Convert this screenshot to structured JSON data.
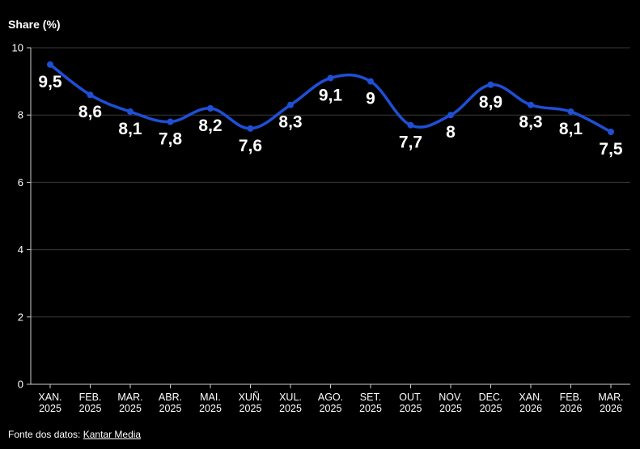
{
  "chart_data": {
    "type": "line",
    "ylabel": "Share (%)",
    "ylim": [
      0,
      10
    ],
    "yticks": [
      0,
      2,
      4,
      6,
      8,
      10
    ],
    "categories": [
      [
        "XAN.",
        "2025"
      ],
      [
        "FEB.",
        "2025"
      ],
      [
        "MAR.",
        "2025"
      ],
      [
        "ABR.",
        "2025"
      ],
      [
        "MAI.",
        "2025"
      ],
      [
        "XUÑ.",
        "2025"
      ],
      [
        "XUL.",
        "2025"
      ],
      [
        "AGO.",
        "2025"
      ],
      [
        "SET.",
        "2025"
      ],
      [
        "OUT.",
        "2025"
      ],
      [
        "NOV.",
        "2025"
      ],
      [
        "DEC.",
        "2025"
      ],
      [
        "XAN.",
        "2026"
      ],
      [
        "FEB.",
        "2026"
      ],
      [
        "MAR.",
        "2026"
      ]
    ],
    "values": [
      9.5,
      8.6,
      8.1,
      7.8,
      8.2,
      7.6,
      8.3,
      9.1,
      9,
      7.7,
      8,
      8.9,
      8.3,
      8.1,
      7.5
    ],
    "data_labels": [
      "9,5",
      "8,6",
      "8,1",
      "7,8",
      "8,2",
      "7,6",
      "8,3",
      "9,1",
      "9",
      "7,7",
      "8",
      "8,9",
      "8,3",
      "8,1",
      "7,5"
    ],
    "grid": true,
    "line_color": "#1f4fd6",
    "grid_color": "#3a3a3a"
  },
  "footer": {
    "prefix": "Fonte dos datos: ",
    "source": "Kantar Media"
  }
}
